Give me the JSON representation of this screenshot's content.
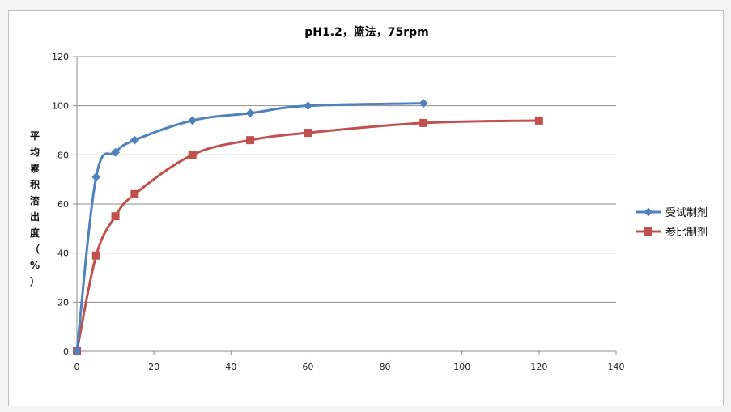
{
  "chart_data": {
    "type": "line",
    "title": "pH1.2，篮法，75rpm",
    "xlabel": "",
    "ylabel": "平均累积溶出度（%）",
    "xlim": [
      0,
      140
    ],
    "ylim": [
      0,
      120
    ],
    "xticks": [
      0,
      20,
      40,
      60,
      80,
      100,
      120,
      140
    ],
    "yticks": [
      0,
      20,
      40,
      60,
      80,
      100,
      120
    ],
    "grid": "horizontal",
    "legend": "right",
    "series": [
      {
        "name": "受试制剂",
        "color": "#4f81bd",
        "marker": "diamond",
        "x": [
          0,
          5,
          10,
          15,
          30,
          45,
          60,
          90
        ],
        "y": [
          0,
          71,
          81,
          86,
          94,
          97,
          100,
          101
        ]
      },
      {
        "name": "参比制剂",
        "color": "#c0504d",
        "marker": "square",
        "x": [
          0,
          5,
          10,
          15,
          30,
          45,
          60,
          90,
          120
        ],
        "y": [
          0,
          39,
          55,
          64,
          80,
          86,
          89,
          93,
          94
        ]
      }
    ]
  }
}
